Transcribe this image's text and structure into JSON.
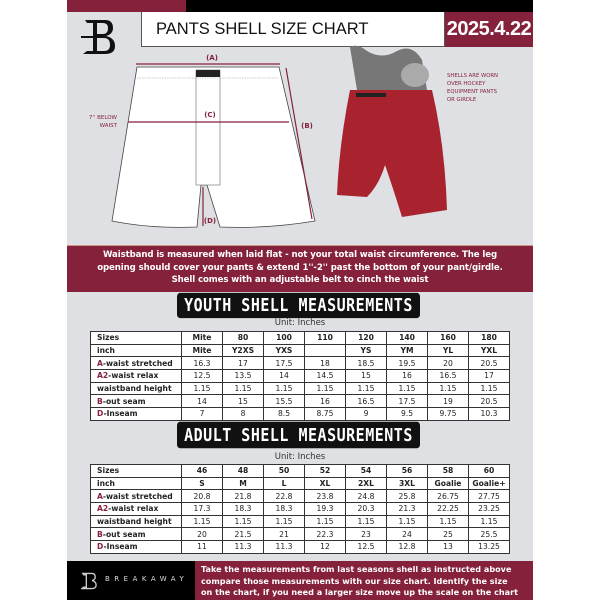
{
  "header": {
    "title": "PANTS SHELL SIZE CHART",
    "date": "2025.4.22"
  },
  "diagram": {
    "label_a": "(A)",
    "label_b": "(B)",
    "label_c": "(C)",
    "label_d": "(D)",
    "below_waist_1": "7'' BELOW",
    "below_waist_2": "WAIST",
    "note": [
      "SHELLS ARE WORN",
      "OVER HOCKEY",
      "EQUIPMENT PANTS",
      "OR GIRDLE"
    ]
  },
  "info_text": [
    "Waistband is measured when laid flat - not your total waist circumference. The leg",
    "opening should cover your pants & extend 1''-2'' past the bottom of your pant/girdle.",
    "Shell comes with an adjustable belt to cinch the waist"
  ],
  "youth": {
    "title": "YOUTH SHELL MEASUREMENTS",
    "unit": "Unit: Inches",
    "rows": [
      {
        "prefix": "",
        "label": "Sizes",
        "values": [
          "Mite",
          "80",
          "100",
          "110",
          "120",
          "140",
          "160",
          "180"
        ]
      },
      {
        "prefix": "",
        "label": "inch",
        "values": [
          "Mite",
          "Y2XS",
          "YXS",
          "",
          "YS",
          "YM",
          "YL",
          "YXL"
        ]
      },
      {
        "prefix": "A",
        "label": "-waist stretched",
        "values": [
          "16.3",
          "17",
          "17.5",
          "18",
          "18.5",
          "19.5",
          "20",
          "20.5"
        ]
      },
      {
        "prefix": "A2",
        "label": "-waist relax",
        "values": [
          "12.5",
          "13.5",
          "14",
          "14.5",
          "15",
          "16",
          "16.5",
          "17"
        ]
      },
      {
        "prefix": "",
        "label": "waistband height",
        "values": [
          "1.15",
          "1.15",
          "1.15",
          "1.15",
          "1.15",
          "1.15",
          "1.15",
          "1.15"
        ]
      },
      {
        "prefix": "B",
        "label": "-out seam",
        "values": [
          "14",
          "15",
          "15.5",
          "16",
          "16.5",
          "17.5",
          "19",
          "20.5"
        ]
      },
      {
        "prefix": "D",
        "label": "-Inseam",
        "values": [
          "7",
          "8",
          "8.5",
          "8.75",
          "9",
          "9.5",
          "9.75",
          "10.3"
        ]
      }
    ]
  },
  "adult": {
    "title": "ADULT SHELL MEASUREMENTS",
    "unit": "Unit: Inches",
    "rows": [
      {
        "prefix": "",
        "label": "Sizes",
        "values": [
          "46",
          "48",
          "50",
          "52",
          "54",
          "56",
          "58",
          "60"
        ]
      },
      {
        "prefix": "",
        "label": "inch",
        "values": [
          "S",
          "M",
          "L",
          "XL",
          "2XL",
          "3XL",
          "Goalie",
          "Goalie+"
        ]
      },
      {
        "prefix": "A",
        "label": "-waist stretched",
        "values": [
          "20.8",
          "21.8",
          "22.8",
          "23.8",
          "24.8",
          "25.8",
          "26.75",
          "27.75"
        ]
      },
      {
        "prefix": "A2",
        "label": "-waist relax",
        "values": [
          "17.3",
          "18.3",
          "18.3",
          "19.3",
          "20.3",
          "21.3",
          "22.25",
          "23.25"
        ]
      },
      {
        "prefix": "",
        "label": "waistband height",
        "values": [
          "1.15",
          "1.15",
          "1.15",
          "1.15",
          "1.15",
          "1.15",
          "1.15",
          "1.15"
        ]
      },
      {
        "prefix": "B",
        "label": "-out seam",
        "values": [
          "20",
          "21.5",
          "21",
          "22.3",
          "23",
          "24",
          "25",
          "25.5"
        ]
      },
      {
        "prefix": "D",
        "label": "-Inseam",
        "values": [
          "11",
          "11.3",
          "11.3",
          "12",
          "12.5",
          "12.8",
          "13",
          "13.25"
        ]
      }
    ]
  },
  "footer": {
    "brand": "BREAKAWAY",
    "text": [
      "Take the measurements from last seasons shell as instructed above",
      "compare those measurements  with our size chart. Identify the size",
      "on the chart, if you need a larger size move up the scale on the chart"
    ]
  },
  "colors": {
    "brand": "#85213b",
    "background": "#dfe0e4",
    "shell": "#a8232e"
  }
}
